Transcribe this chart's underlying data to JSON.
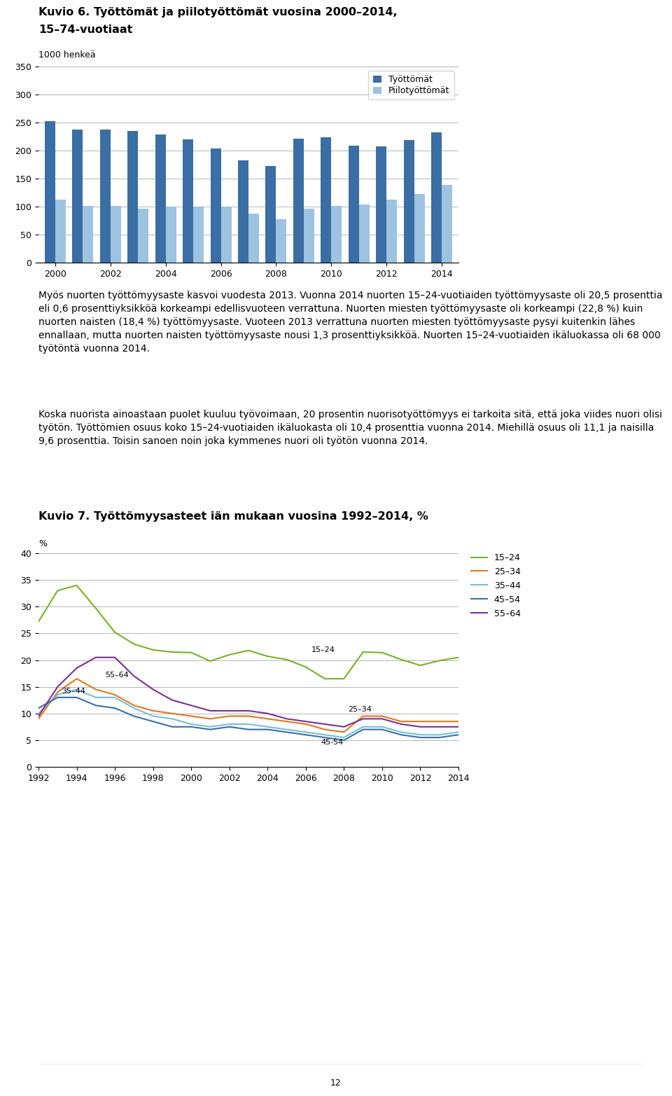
{
  "chart1_title_line1": "Kuvio 6. Työttömät ja piilotyöttömät vuosina 2000–2014,",
  "chart1_title_line2": "15–74-vuotiaat",
  "chart1_ylabel": "1000 henkeä",
  "chart1_years": [
    2000,
    2001,
    2002,
    2003,
    2004,
    2005,
    2006,
    2007,
    2008,
    2009,
    2010,
    2011,
    2012,
    2013,
    2014
  ],
  "chart1_tyottomat": [
    253,
    238,
    237,
    235,
    229,
    220,
    204,
    183,
    172,
    221,
    224,
    209,
    207,
    219,
    233
  ],
  "chart1_piilotyp": [
    113,
    101,
    101,
    96,
    100,
    99,
    100,
    88,
    78,
    96,
    101,
    104,
    113,
    123,
    139
  ],
  "chart1_color_dark": "#3A6EA5",
  "chart1_color_light": "#9DC3E0",
  "chart1_ylim": [
    0,
    350
  ],
  "chart1_yticks": [
    0,
    50,
    100,
    150,
    200,
    250,
    300,
    350
  ],
  "chart1_xticks": [
    2000,
    2002,
    2004,
    2006,
    2008,
    2010,
    2012,
    2014
  ],
  "chart1_legend_labels": [
    "Työttömät",
    "Piilotyöttömät"
  ],
  "chart2_title": "Kuvio 7. Työttömyysasteet iän mukaan vuosina 1992–2014, %",
  "chart2_ylabel": "%",
  "chart2_years": [
    1992,
    1993,
    1994,
    1995,
    1996,
    1997,
    1998,
    1999,
    2000,
    2001,
    2002,
    2003,
    2004,
    2005,
    2006,
    2007,
    2008,
    2009,
    2010,
    2011,
    2012,
    2013,
    2014
  ],
  "chart2_15_24": [
    27.2,
    33.0,
    34.0,
    29.7,
    25.2,
    23.0,
    21.9,
    21.5,
    21.4,
    19.8,
    21.0,
    21.8,
    20.7,
    20.1,
    18.7,
    16.5,
    16.5,
    21.5,
    21.4,
    20.1,
    19.0,
    19.9,
    20.5
  ],
  "chart2_25_34": [
    9.0,
    14.0,
    16.5,
    14.5,
    13.5,
    11.5,
    10.5,
    10.0,
    9.5,
    9.0,
    9.5,
    9.5,
    9.0,
    8.5,
    8.0,
    7.0,
    6.5,
    9.5,
    9.5,
    8.5,
    8.5,
    8.5,
    8.5
  ],
  "chart2_35_44": [
    10.0,
    13.5,
    14.5,
    13.0,
    13.0,
    11.0,
    9.5,
    9.0,
    8.0,
    7.5,
    8.0,
    8.0,
    7.5,
    7.0,
    6.5,
    6.0,
    5.5,
    7.5,
    7.5,
    6.5,
    6.0,
    6.0,
    6.5
  ],
  "chart2_45_54": [
    11.0,
    13.0,
    13.0,
    11.5,
    11.0,
    9.5,
    8.5,
    7.5,
    7.5,
    7.0,
    7.5,
    7.0,
    7.0,
    6.5,
    6.0,
    5.5,
    5.0,
    7.0,
    7.0,
    6.0,
    5.5,
    5.5,
    6.0
  ],
  "chart2_55_64": [
    9.5,
    15.0,
    18.5,
    20.5,
    20.5,
    17.0,
    14.5,
    12.5,
    11.5,
    10.5,
    10.5,
    10.5,
    10.0,
    9.0,
    8.5,
    8.0,
    7.5,
    9.0,
    9.0,
    8.0,
    7.5,
    7.5,
    7.5
  ],
  "chart2_color_15_24": "#7CAF2A",
  "chart2_color_25_34": "#E07820",
  "chart2_color_35_44": "#79BCDB",
  "chart2_color_45_54": "#3A6EA5",
  "chart2_color_55_64": "#7B3092",
  "chart2_ylim": [
    0,
    40
  ],
  "chart2_yticks": [
    0,
    5,
    10,
    15,
    20,
    25,
    30,
    35,
    40
  ],
  "chart2_xticks": [
    1992,
    1994,
    1996,
    1998,
    2000,
    2002,
    2004,
    2006,
    2008,
    2010,
    2012,
    2014
  ],
  "chart2_legend_labels": [
    "15–24",
    "25–34",
    "35–44",
    "45–54",
    "55–64"
  ],
  "body_text_p1": "Myös nuorten työttömyysaste kasvoi vuodesta 2013. Vuonna 2014 nuorten 15–24-vuotiaiden työttömyysaste oli 20,5 prosenttia eli 0,6 prosenttiyksikköä korkeampi edellisvuoteen verrattuna. Nuorten miesten työttömyysaste oli korkeampi (22,8 %) kuin nuorten naisten (18,4 %) työttömyysaste. Vuoteen 2013 verrattuna nuorten miesten työttömyysaste pysyi kuitenkin lähes ennallaan, mutta nuorten naisten työttömyysaste nousi 1,3 prosenttiyksikköä. Nuorten 15–24-vuotiaiden ikäluokassa oli 68 000 työtöntä vuonna 2014.",
  "body_text_p2": "Koska nuorista ainoastaan puolet kuuluu työvoimaan, 20 prosentin nuorisotyöttömyys ei tarkoita sitä, että joka viides nuori olisi työtön. Työttömien osuus koko 15–24-vuotiaiden ikäluokasta oli 10,4 prosenttia vuonna 2014. Miehillä osuus oli 11,1 ja naisilla 9,6 prosenttia. Toisin sanoen noin joka kymmenes nuori oli työtön vuonna 2014.",
  "page_number": "12",
  "font_size_body": 10.0,
  "font_size_title": 11.5,
  "font_size_axis": 9.0,
  "font_size_legend": 9.0
}
